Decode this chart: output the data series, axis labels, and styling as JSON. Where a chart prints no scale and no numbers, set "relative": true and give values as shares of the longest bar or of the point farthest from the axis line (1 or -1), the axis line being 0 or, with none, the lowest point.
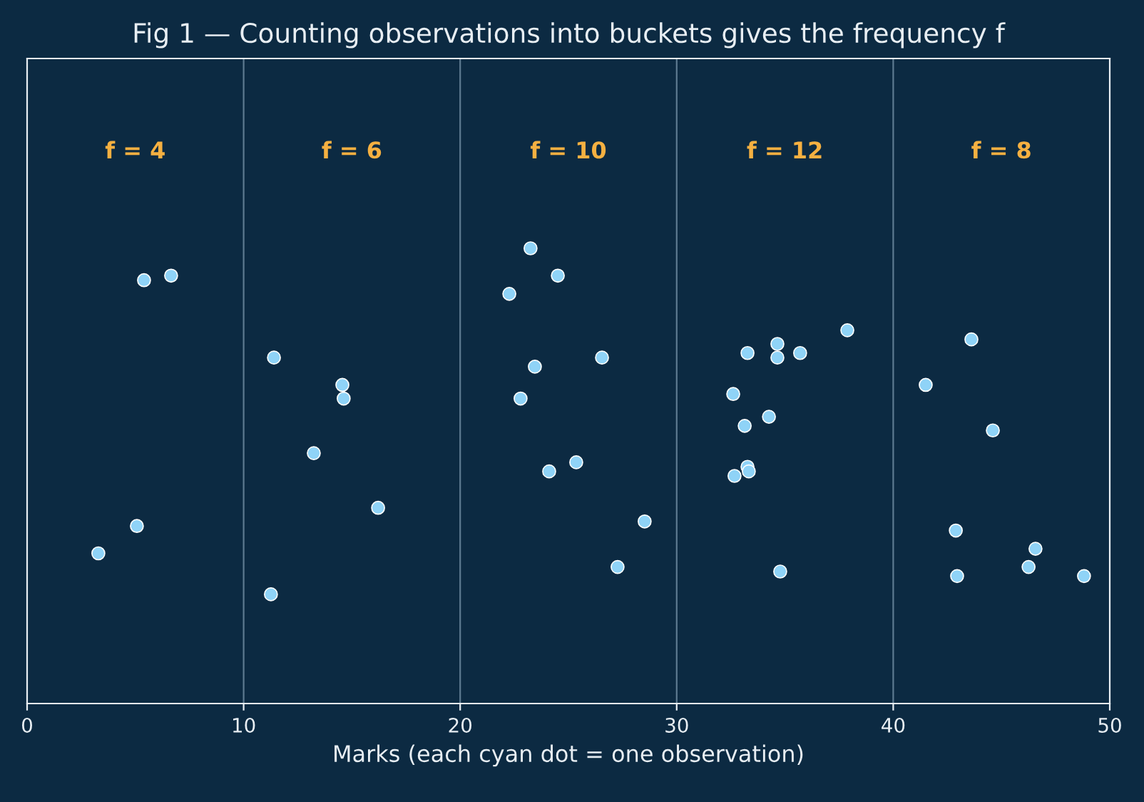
{
  "chart_data": {
    "type": "scatter",
    "title": "Fig 1 — Counting observations into buckets gives the frequency f",
    "xlabel": "Marks (each cyan dot = one observation)",
    "relative": true,
    "xlim": [
      0,
      50
    ],
    "xticks": [
      0,
      10,
      20,
      30,
      40,
      50
    ],
    "grid": false,
    "legend": false,
    "marker": "circle",
    "series": [
      {
        "color": "#8fd3f7",
        "x": [
          5.4,
          6.65,
          3.29,
          5.07,
          11.4,
          14.56,
          14.62,
          13.24,
          16.21,
          11.26,
          23.25,
          24.51,
          22.27,
          23.45,
          26.55,
          22.79,
          24.11,
          25.36,
          28.52,
          27.27,
          33.27,
          34.65,
          35.7,
          34.65,
          37.88,
          32.61,
          34.26,
          33.14,
          33.27,
          33.33,
          32.67,
          34.78,
          43.61,
          41.5,
          44.6,
          42.89,
          46.57,
          46.25,
          42.95,
          48.81
        ],
        "values": [
          0.93,
          0.94,
          0.33,
          0.39,
          0.76,
          0.7,
          0.67,
          0.55,
          0.43,
          0.24,
          1.0,
          0.94,
          0.9,
          0.74,
          0.76,
          0.67,
          0.51,
          0.53,
          0.4,
          0.3,
          0.77,
          0.79,
          0.77,
          0.76,
          0.82,
          0.68,
          0.63,
          0.61,
          0.52,
          0.51,
          0.5,
          0.29,
          0.8,
          0.7,
          0.6,
          0.38,
          0.34,
          0.3,
          0.28,
          0.28
        ]
      }
    ],
    "ref_lines": [
      {
        "axis": "x",
        "value": 10,
        "color": "#5d7a90"
      },
      {
        "axis": "x",
        "value": 20,
        "color": "#5d7a90"
      },
      {
        "axis": "x",
        "value": 30,
        "color": "#5d7a90"
      },
      {
        "axis": "x",
        "value": 40,
        "color": "#5d7a90"
      }
    ],
    "annotations": [
      "f = 4",
      "f = 6",
      "f = 10",
      "f = 12",
      "f = 8"
    ]
  }
}
